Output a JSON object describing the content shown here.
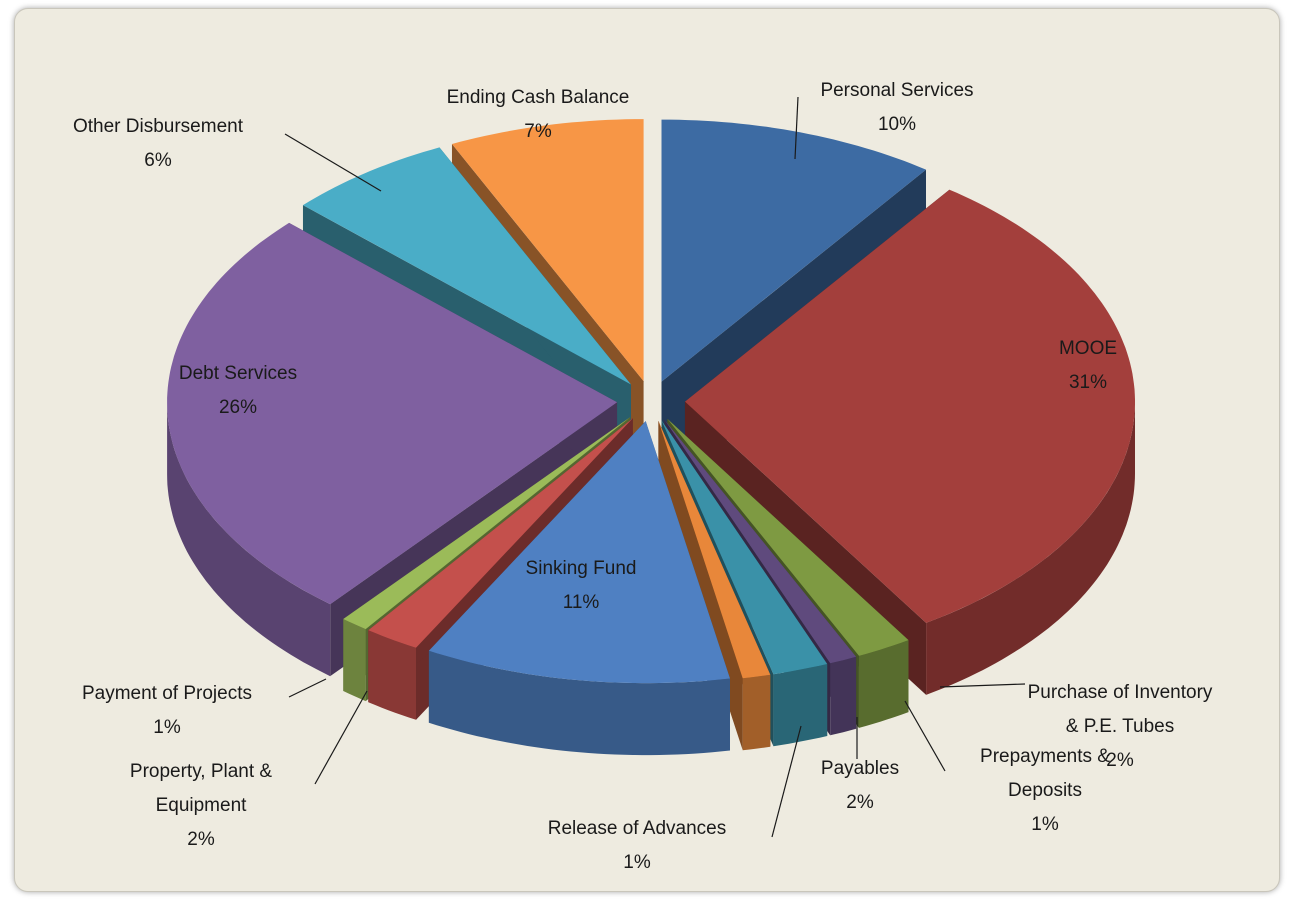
{
  "chart_data": {
    "type": "pie3d",
    "categories": [
      "Personal Services",
      "MOOE",
      "Purchase of Inventory & P.E. Tubes",
      "Prepayments & Deposits",
      "Payables",
      "Release of Advances",
      "Sinking Fund",
      "Property, Plant & Equipment",
      "Payment of Projects",
      "Debt Services",
      "Other Disbursement",
      "Ending Cash Balance"
    ],
    "values": [
      10,
      31,
      2,
      1,
      2,
      1,
      11,
      2,
      1,
      26,
      6,
      7
    ],
    "value_labels": [
      "10%",
      "31%",
      "2%",
      "1%",
      "2%",
      "1%",
      "11%",
      "2%",
      "1%",
      "26%",
      "6%",
      "7%"
    ],
    "colors": [
      "#3d6ba3",
      "#a33f3c",
      "#7e9a42",
      "#5f4a7d",
      "#3a91a8",
      "#e8873a",
      "#4f80c2",
      "#c4504c",
      "#9bbb59",
      "#7f60a0",
      "#4aadc7",
      "#f79646"
    ]
  }
}
